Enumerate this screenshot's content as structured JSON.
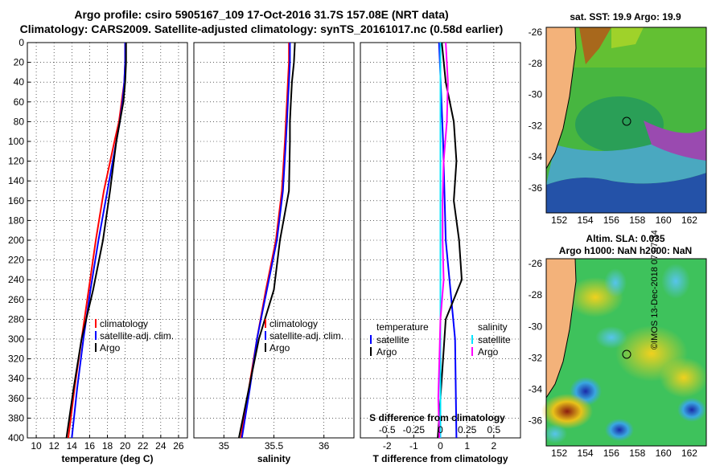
{
  "header": {
    "title_line1": "Argo profile: csiro 5905167_109 17-Oct-2016 31.7S 157.08E (NRT data)",
    "title_line2": "Climatology: CARS2009. Satellite-adjusted climatology: synTS_20161017.nc (0.58d earlier)"
  },
  "maps": {
    "sst_title": "sat. SST: 19.9 Argo: 19.9",
    "sla_title_line1": "Altim. SLA: 0.035",
    "sla_title_line2": "Argo h1000: NaN h2000: NaN",
    "lat_ticks": [
      -26,
      -28,
      -30,
      -32,
      -34,
      -36
    ],
    "lon_ticks": [
      152,
      154,
      156,
      158,
      160,
      162
    ],
    "float_position": {
      "lon": 157.08,
      "lat": -31.7
    }
  },
  "footer": {
    "stamp": "©IMOS 13-Dec-2018 07:07:34"
  },
  "colors": {
    "climatology": "#ff0000",
    "satellite": "#0000ff",
    "argo": "#000000",
    "sat_t": "#00e5ff",
    "sat_s": "#ff00ff"
  },
  "chart_data": [
    {
      "type": "line",
      "name": "temperature",
      "xlabel": "temperature (deg C)",
      "ylabel": "",
      "xlim": [
        9,
        27
      ],
      "ylim": [
        400,
        0
      ],
      "xticks": [
        10,
        12,
        14,
        16,
        18,
        20,
        22,
        24,
        26
      ],
      "yticks": [
        0,
        20,
        40,
        60,
        80,
        100,
        120,
        140,
        160,
        180,
        200,
        220,
        240,
        260,
        280,
        300,
        320,
        340,
        360,
        380,
        400
      ],
      "grid": true,
      "legend": [
        "climatology",
        "satellite-adj. clim.",
        "Argo"
      ],
      "series": [
        {
          "name": "climatology",
          "depth": [
            0,
            20,
            40,
            60,
            80,
            100,
            150,
            200,
            250,
            300,
            350,
            400
          ],
          "values": [
            20.0,
            20.0,
            19.9,
            19.6,
            19.3,
            18.8,
            17.6,
            16.7,
            15.9,
            15.1,
            14.3,
            13.6
          ]
        },
        {
          "name": "satellite-adj. clim.",
          "depth": [
            0,
            20,
            40,
            60,
            80,
            100,
            150,
            200,
            250,
            300,
            350,
            400
          ],
          "values": [
            20.0,
            20.0,
            19.9,
            19.7,
            19.4,
            19.0,
            18.0,
            17.0,
            16.1,
            15.3,
            14.6,
            14.0
          ]
        },
        {
          "name": "Argo",
          "depth": [
            0,
            20,
            40,
            60,
            80,
            100,
            150,
            200,
            250,
            300,
            350,
            400
          ],
          "values": [
            20.1,
            20.1,
            20.0,
            19.8,
            19.4,
            19.0,
            18.3,
            17.5,
            16.4,
            15.1,
            14.2,
            13.4
          ]
        }
      ]
    },
    {
      "type": "line",
      "name": "salinity",
      "xlabel": "salinity",
      "ylabel": "",
      "xlim": [
        34.7,
        36.3
      ],
      "ylim": [
        400,
        0
      ],
      "xticks": [
        35,
        35.5,
        36
      ],
      "xtick_labels": [
        "35",
        "35.5",
        "36"
      ],
      "grid": true,
      "legend": [
        "climatology",
        "satellite-adj. clim.",
        "Argo"
      ],
      "series": [
        {
          "name": "climatology",
          "depth": [
            0,
            20,
            40,
            60,
            80,
            100,
            150,
            200,
            250,
            300,
            350,
            400
          ],
          "values": [
            35.65,
            35.65,
            35.64,
            35.63,
            35.62,
            35.61,
            35.58,
            35.52,
            35.42,
            35.33,
            35.25,
            35.17
          ]
        },
        {
          "name": "satellite-adj. clim.",
          "depth": [
            0,
            20,
            40,
            60,
            80,
            100,
            150,
            200,
            250,
            300,
            350,
            400
          ],
          "values": [
            35.66,
            35.66,
            35.65,
            35.64,
            35.63,
            35.62,
            35.59,
            35.53,
            35.43,
            35.33,
            35.26,
            35.18
          ]
        },
        {
          "name": "Argo",
          "depth": [
            0,
            20,
            40,
            60,
            80,
            100,
            150,
            200,
            250,
            300,
            350,
            400
          ],
          "values": [
            35.71,
            35.7,
            35.68,
            35.67,
            35.66,
            35.66,
            35.65,
            35.56,
            35.5,
            35.35,
            35.25,
            35.15
          ]
        }
      ]
    },
    {
      "type": "line",
      "name": "difference",
      "xlabel": "T difference from climatology",
      "x2label": "S difference from climatology",
      "xlim": [
        -3,
        3
      ],
      "ylim": [
        400,
        0
      ],
      "xticks": [
        -2,
        -1,
        0,
        1,
        2
      ],
      "x2ticks": [
        -0.5,
        -0.25,
        0,
        0.25,
        0.5
      ],
      "x2tick_labels": [
        "-0.5",
        "-0.25",
        "0",
        "0.25",
        "0.5"
      ],
      "x2lim": [
        -0.75,
        0.75
      ],
      "grid": true,
      "legend_left_title": "temperature",
      "legend_left": [
        "satellite",
        "Argo"
      ],
      "legend_right_title": "salinity",
      "legend_right": [
        "satellite",
        "Argo"
      ],
      "series": [
        {
          "name": "T satellite",
          "axis": "T",
          "depth": [
            0,
            100,
            200,
            300,
            400
          ],
          "values": [
            -0.05,
            0.1,
            0.2,
            0.55,
            0.6
          ]
        },
        {
          "name": "T Argo",
          "axis": "T",
          "depth": [
            0,
            40,
            80,
            120,
            160,
            200,
            240,
            280,
            320,
            360,
            400
          ],
          "values": [
            0.05,
            0.2,
            0.5,
            0.6,
            0.5,
            0.7,
            0.8,
            0.2,
            0.1,
            0.0,
            -0.1
          ]
        },
        {
          "name": "S satellite",
          "axis": "S",
          "depth": [
            0,
            400
          ],
          "values": [
            0.0,
            0.0
          ]
        },
        {
          "name": "S Argo",
          "axis": "S",
          "depth": [
            0,
            40,
            80,
            120,
            160,
            200,
            240,
            280,
            320,
            360,
            400
          ],
          "values": [
            0.05,
            0.07,
            0.06,
            0.03,
            0.02,
            0.02,
            0.03,
            0.0,
            -0.01,
            -0.02,
            -0.01
          ]
        }
      ]
    }
  ]
}
